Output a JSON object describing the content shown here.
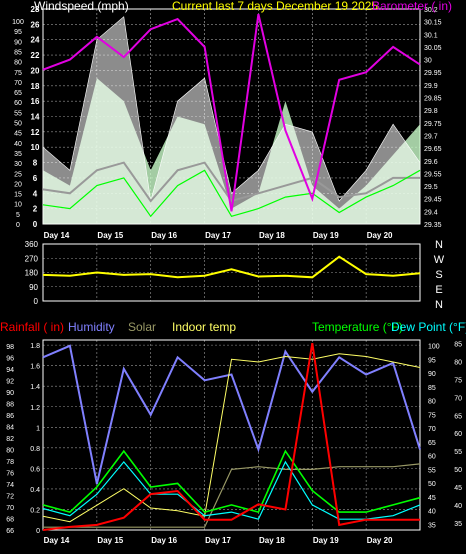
{
  "colors": {
    "wind": "#ffffff",
    "gust": "#ccffcc",
    "wind_avg": "#00ff00",
    "wind_avg2": "#999999",
    "barometer": "#e100e1",
    "direction": "#ffff00",
    "rainfall": "#ff0000",
    "humidity": "#8080ff",
    "solar": "#999966",
    "indoor": "#ffff66",
    "temperature": "#00ff00",
    "dew": "#00ffff",
    "title": "#ffff00",
    "grid": "#ffffff"
  },
  "chart_data": [
    {
      "type": "area",
      "title": "Current last 7 days December 19 2025",
      "left_label": "Windspeed (mph)",
      "right_label": "Barometer ( in)",
      "x_ticks": [
        "Day 14",
        "Day 15",
        "Day 16",
        "Day 17",
        "Day 18",
        "Day 19",
        "Day 20"
      ],
      "left_ticks": [
        0,
        5,
        10,
        15,
        20,
        25,
        30,
        35,
        40,
        45,
        50,
        55,
        60,
        65,
        70,
        75,
        80,
        85,
        90,
        95,
        100
      ],
      "left_ticks_inner": [
        0,
        2,
        4,
        6,
        8,
        10,
        12,
        14,
        16,
        18,
        20,
        22,
        24,
        26,
        28
      ],
      "right_ticks": [
        "29.35",
        "29.4",
        "29.45",
        "29.5",
        "29.55",
        "29.6",
        "29.65",
        "29.7",
        "29.75",
        "29.8",
        "29.85",
        "29.9",
        "29.95",
        "30",
        "30.05",
        "30.1",
        "30.15",
        "30.2"
      ],
      "ylim_left": [
        0,
        28
      ],
      "ylim_right": [
        29.35,
        30.2
      ],
      "grid": true,
      "x": [
        0,
        0.5,
        1,
        1.5,
        2,
        2.5,
        3,
        3.5,
        4,
        4.5,
        5,
        5.5,
        6,
        6.5,
        7
      ],
      "series": [
        {
          "key": "gust",
          "values": [
            7,
            5,
            19,
            16,
            7,
            14,
            13,
            2,
            4,
            16,
            5,
            2,
            5,
            9,
            13
          ]
        },
        {
          "key": "wind",
          "values": [
            10,
            7,
            24,
            27,
            3,
            16,
            19,
            4,
            7,
            13,
            12,
            3,
            7,
            13,
            8
          ]
        },
        {
          "key": "wind_avg",
          "values": [
            2.5,
            2,
            5,
            6,
            1,
            5,
            7,
            1,
            2,
            3.5,
            4,
            1.5,
            3.5,
            5,
            7
          ]
        },
        {
          "key": "wind_avg2",
          "values": [
            4.5,
            4,
            7,
            8,
            3,
            7,
            8,
            3,
            4,
            5,
            6,
            3.5,
            4,
            6,
            6
          ]
        },
        {
          "key": "barometer",
          "values": [
            29.96,
            30.0,
            30.09,
            30.01,
            30.12,
            30.16,
            30.05,
            29.4,
            30.18,
            29.72,
            29.45,
            29.92,
            29.95,
            30.05,
            29.98
          ]
        }
      ]
    },
    {
      "type": "line",
      "title": "",
      "left_ticks": [
        0,
        90,
        180,
        270,
        360
      ],
      "compass": [
        "N",
        "W",
        "S",
        "E",
        "N"
      ],
      "ylim": [
        0,
        360
      ],
      "x": [
        0,
        0.5,
        1,
        1.5,
        2,
        2.5,
        3,
        3.5,
        4,
        4.5,
        5,
        5.5,
        6,
        6.5,
        7
      ],
      "series": [
        {
          "key": "direction",
          "values": [
            165,
            160,
            180,
            165,
            170,
            150,
            160,
            200,
            155,
            160,
            150,
            280,
            170,
            160,
            175
          ]
        }
      ]
    },
    {
      "type": "line",
      "labels": {
        "rain": "Rainfall ( in)",
        "humidity": "Humidity",
        "solar": "Solar",
        "indoor": "Indoor temp",
        "temp": "Temperature (°F)",
        "dew": "Dew Point (°F)"
      },
      "x_ticks": [
        "Day 14",
        "Day 15",
        "Day 16",
        "Day 17",
        "Day 18",
        "Day 19",
        "Day 20"
      ],
      "rain_ticks": [
        "0",
        "0.2",
        "0.4",
        "0.6",
        "0.8",
        "1",
        "1.2",
        "1.4",
        "1.6",
        "1.8"
      ],
      "humidity_ticks": [
        66,
        68,
        70,
        72,
        74,
        76,
        78,
        80,
        82,
        84,
        86,
        88,
        90,
        92,
        94,
        96,
        98
      ],
      "temp_ticks": [
        35,
        40,
        45,
        50,
        55,
        60,
        65,
        70,
        75,
        80,
        85
      ],
      "dew_ticks": [
        35,
        40,
        45,
        50,
        55,
        60,
        65,
        70,
        75,
        80,
        85,
        90,
        95,
        100
      ],
      "ylim_rain": [
        0,
        1.85
      ],
      "ylim_humidity": [
        66,
        99
      ],
      "ylim_temp": [
        33,
        86
      ],
      "ylim_dew": [
        33,
        102
      ],
      "grid": true,
      "x": [
        0,
        0.5,
        1,
        1.5,
        2,
        2.5,
        3,
        3.5,
        4,
        4.5,
        5,
        5.5,
        6,
        6.5,
        7
      ],
      "series": [
        {
          "key": "humidity",
          "values": [
            96,
            98,
            74,
            94,
            86,
            96,
            92,
            93,
            80,
            97,
            90,
            96,
            93,
            95,
            80
          ]
        },
        {
          "key": "rainfall",
          "values": [
            0,
            0.03,
            0.05,
            0.12,
            0.35,
            0.38,
            0.1,
            0.1,
            0.25,
            0.2,
            1.82,
            0.05,
            0.1,
            0.1,
            0.1
          ]
        },
        {
          "key": "temperature",
          "values": [
            40,
            38,
            45,
            55,
            45,
            46,
            38,
            40,
            38,
            55,
            44,
            38,
            38,
            40,
            42
          ]
        },
        {
          "key": "dew",
          "values": [
            39,
            37,
            43,
            52,
            43,
            43,
            37,
            38,
            36,
            52,
            40,
            36,
            36,
            37,
            40
          ]
        },
        {
          "key": "indoor",
          "values": [
            38,
            36,
            42,
            48,
            41,
            40,
            38,
            95,
            94,
            96,
            95,
            97,
            96,
            94,
            92
          ]
        },
        {
          "key": "solar",
          "values": [
            34,
            34,
            34,
            34,
            34,
            34,
            34,
            55,
            56,
            55,
            55,
            56,
            56,
            56,
            57
          ]
        }
      ]
    }
  ]
}
